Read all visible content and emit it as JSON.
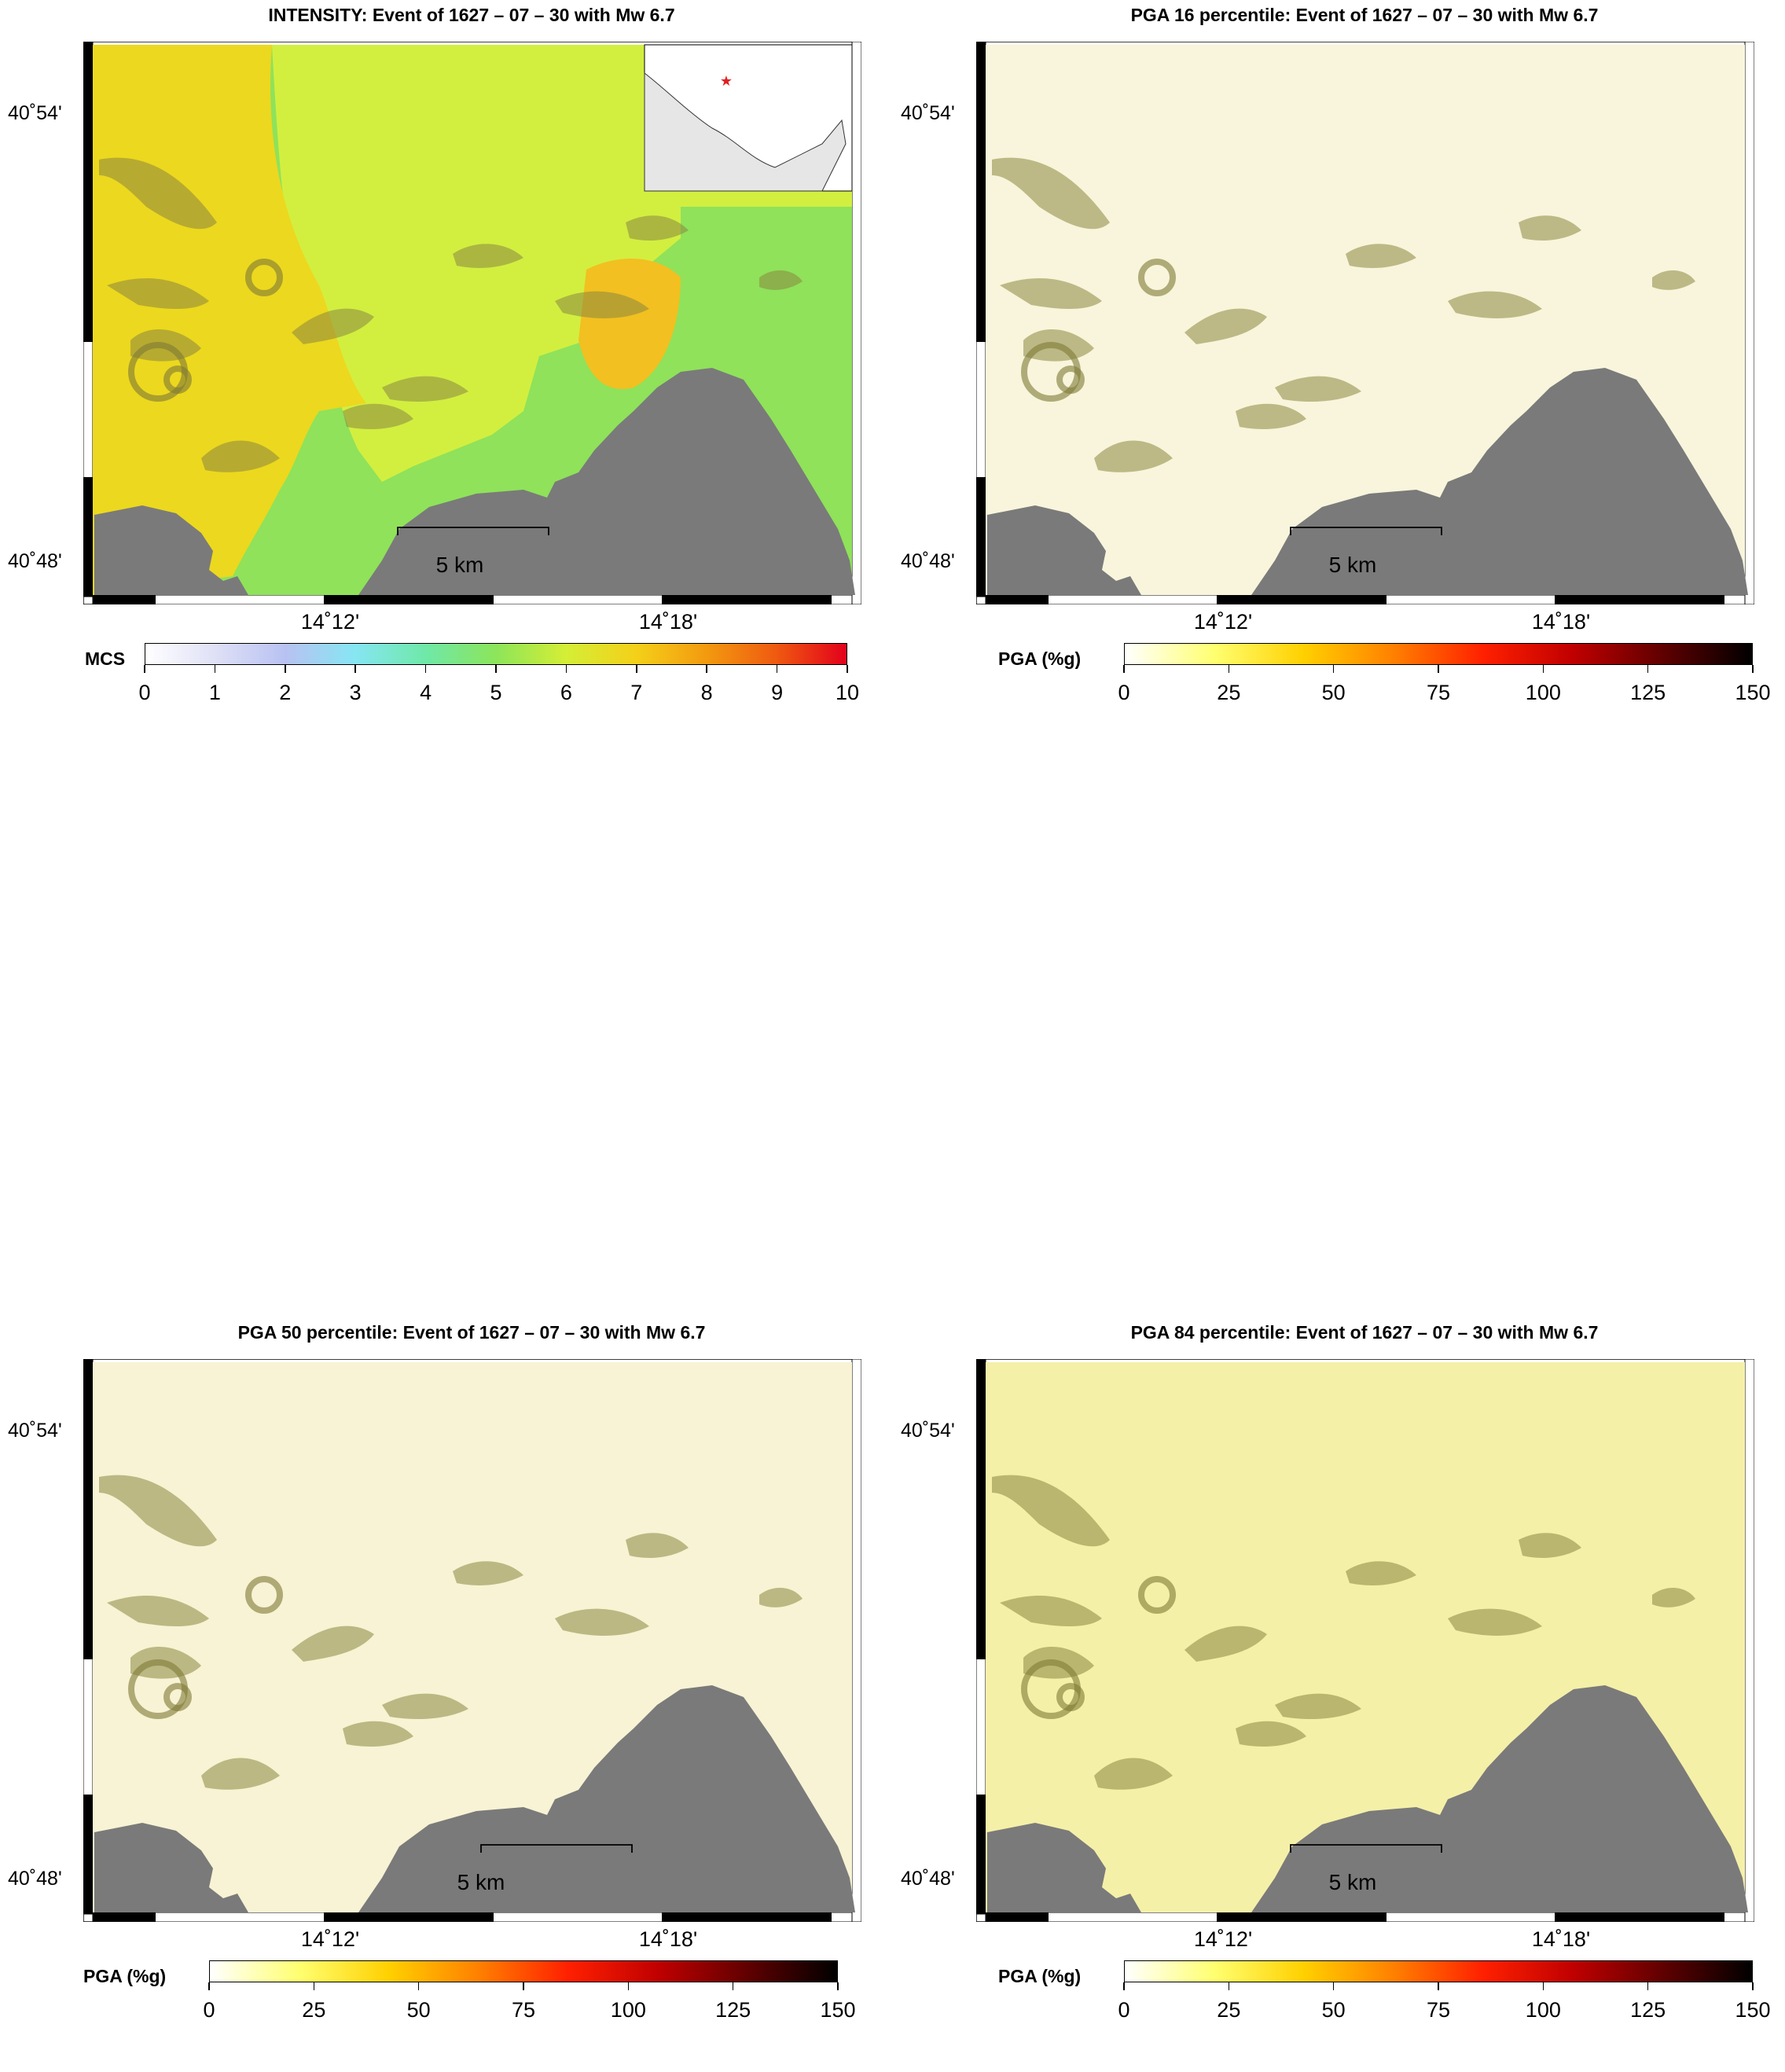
{
  "colors": {
    "sea": "#7a7a7a",
    "inset_land": "#e6e6e6",
    "epicenter": "#e02020",
    "frame": "#000000"
  },
  "scale_bar": {
    "label": "5 km"
  },
  "latitude_labels": [
    "40˚54'",
    "40˚48'"
  ],
  "longitude_labels": [
    "14˚12'",
    "14˚18'"
  ],
  "colorbars": {
    "mcs": {
      "label": "MCS",
      "ticks": [
        "0",
        "1",
        "2",
        "3",
        "4",
        "5",
        "6",
        "7",
        "8",
        "9",
        "10"
      ],
      "stops": [
        "#ffffff",
        "#dfe0f6",
        "#b8c2f2",
        "#86e6f2",
        "#6fe8a8",
        "#8ce55a",
        "#d5ee36",
        "#f4d019",
        "#f39a0f",
        "#ef5a10",
        "#e3001c"
      ]
    },
    "pga": {
      "label": "PGA (%g)",
      "ticks": [
        "0",
        "25",
        "50",
        "75",
        "100",
        "125",
        "150"
      ],
      "stops": [
        "#ffffff",
        "#ffff70",
        "#ffd000",
        "#ff8000",
        "#ff2000",
        "#c00000",
        "#600000",
        "#000000"
      ]
    }
  },
  "panels": [
    {
      "title": "INTENSITY: Event of 1627 – 07 – 30 with Mw 6.7",
      "scale": "mcs",
      "inset": true,
      "land": "intensity"
    },
    {
      "title": "PGA 16 percentile: Event of 1627 – 07 – 30 with Mw 6.7",
      "scale": "pga",
      "inset": false,
      "land": "#f8f5dc"
    },
    {
      "title": "PGA 50 percentile: Event of 1627 – 07 – 30 with Mw 6.7",
      "scale": "pga",
      "inset": false,
      "land": "#f7f3d4"
    },
    {
      "title": "PGA 84 percentile: Event of 1627 – 07 – 30 with Mw 6.7",
      "scale": "pga",
      "inset": false,
      "land": "#f5f0a8"
    }
  ]
}
